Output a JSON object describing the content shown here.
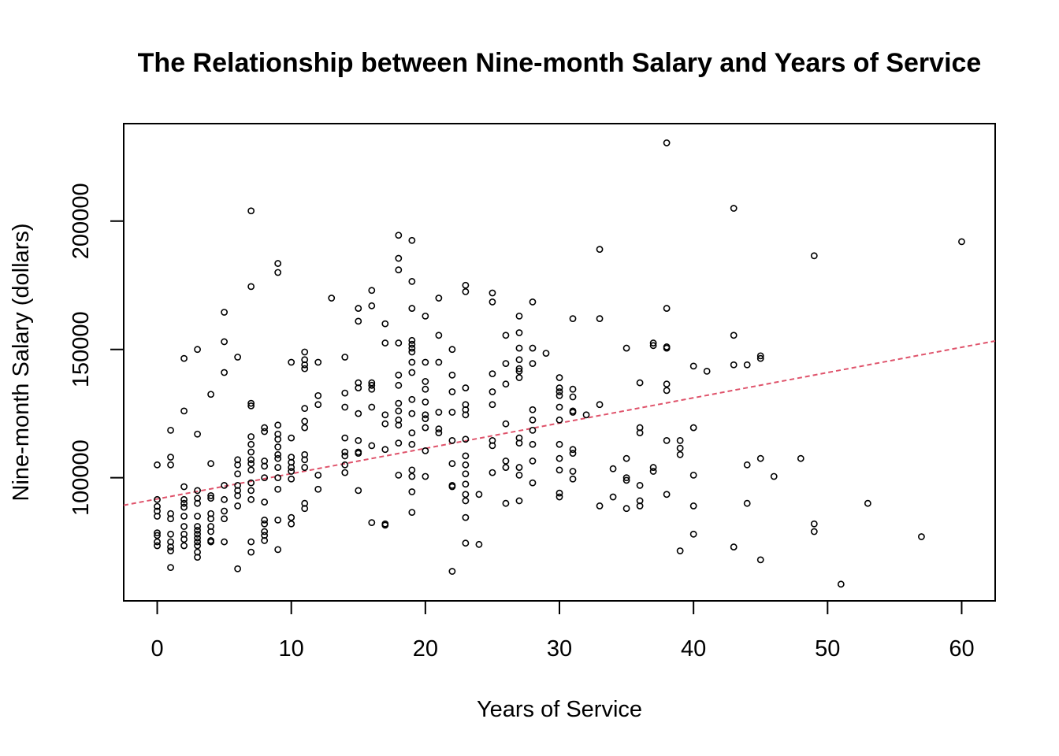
{
  "chart_data": {
    "type": "scatter",
    "title": "The Relationship between Nine-month Salary and Years of Service",
    "xlabel": "Years of Service",
    "ylabel": "Nine-month Salary (dollars)",
    "xlim": [
      -2.5,
      62.5
    ],
    "ylim": [
      52000,
      238000
    ],
    "x_ticks": [
      0,
      10,
      20,
      30,
      40,
      50,
      60
    ],
    "y_ticks": [
      100000,
      150000,
      200000
    ],
    "grid": false,
    "point_color": "#000000",
    "fit_line": {
      "style": "dashed",
      "color": "#DF536B",
      "intercept": 91719,
      "slope": 985.3
    },
    "points": [
      [
        0,
        105000
      ],
      [
        0,
        91500
      ],
      [
        0,
        88800
      ],
      [
        0,
        87000
      ],
      [
        0,
        85000
      ],
      [
        0,
        78500
      ],
      [
        0,
        77500
      ],
      [
        0,
        75000
      ],
      [
        0,
        73500
      ],
      [
        1,
        118500
      ],
      [
        1,
        108000
      ],
      [
        1,
        105000
      ],
      [
        1,
        86000
      ],
      [
        1,
        84000
      ],
      [
        1,
        78000
      ],
      [
        1,
        75000
      ],
      [
        1,
        73000
      ],
      [
        1,
        71500
      ],
      [
        1,
        65000
      ],
      [
        2,
        146500
      ],
      [
        2,
        126000
      ],
      [
        2,
        96500
      ],
      [
        2,
        91500
      ],
      [
        2,
        90000
      ],
      [
        2,
        88500
      ],
      [
        2,
        85000
      ],
      [
        2,
        81000
      ],
      [
        2,
        78000
      ],
      [
        2,
        76000
      ],
      [
        2,
        73500
      ],
      [
        3,
        150000
      ],
      [
        3,
        117000
      ],
      [
        3,
        95000
      ],
      [
        3,
        92000
      ],
      [
        3,
        90000
      ],
      [
        3,
        85000
      ],
      [
        3,
        81000
      ],
      [
        3,
        79500
      ],
      [
        3,
        78000
      ],
      [
        3,
        76500
      ],
      [
        3,
        75000
      ],
      [
        3,
        73500
      ],
      [
        3,
        71000
      ],
      [
        3,
        69000
      ],
      [
        4,
        132500
      ],
      [
        4,
        105500
      ],
      [
        4,
        93000
      ],
      [
        4,
        92000
      ],
      [
        4,
        86000
      ],
      [
        4,
        84000
      ],
      [
        4,
        81000
      ],
      [
        4,
        79000
      ],
      [
        4,
        75500
      ],
      [
        4,
        75000
      ],
      [
        5,
        164500
      ],
      [
        5,
        153000
      ],
      [
        5,
        141000
      ],
      [
        5,
        97000
      ],
      [
        5,
        91500
      ],
      [
        5,
        87000
      ],
      [
        5,
        84000
      ],
      [
        5,
        75000
      ],
      [
        6,
        147000
      ],
      [
        6,
        107000
      ],
      [
        6,
        105000
      ],
      [
        6,
        101500
      ],
      [
        6,
        97000
      ],
      [
        6,
        95000
      ],
      [
        6,
        93000
      ],
      [
        6,
        89000
      ],
      [
        6,
        64500
      ],
      [
        7,
        204000
      ],
      [
        7,
        174500
      ],
      [
        7,
        129000
      ],
      [
        7,
        128000
      ],
      [
        7,
        116000
      ],
      [
        7,
        113000
      ],
      [
        7,
        110000
      ],
      [
        7,
        107000
      ],
      [
        7,
        105500
      ],
      [
        7,
        103000
      ],
      [
        7,
        98000
      ],
      [
        7,
        95000
      ],
      [
        7,
        91500
      ],
      [
        7,
        75000
      ],
      [
        7,
        71000
      ],
      [
        8,
        119500
      ],
      [
        8,
        118000
      ],
      [
        8,
        106500
      ],
      [
        8,
        104500
      ],
      [
        8,
        100000
      ],
      [
        8,
        90500
      ],
      [
        8,
        83500
      ],
      [
        8,
        82000
      ],
      [
        8,
        79000
      ],
      [
        8,
        77500
      ],
      [
        8,
        75500
      ],
      [
        9,
        183500
      ],
      [
        9,
        180000
      ],
      [
        9,
        120500
      ],
      [
        9,
        117000
      ],
      [
        9,
        115000
      ],
      [
        9,
        112000
      ],
      [
        9,
        109000
      ],
      [
        9,
        107500
      ],
      [
        9,
        104000
      ],
      [
        9,
        100000
      ],
      [
        9,
        95500
      ],
      [
        9,
        83500
      ],
      [
        9,
        72000
      ],
      [
        10,
        145000
      ],
      [
        10,
        115500
      ],
      [
        10,
        108000
      ],
      [
        10,
        106000
      ],
      [
        10,
        104000
      ],
      [
        10,
        102500
      ],
      [
        10,
        99500
      ],
      [
        10,
        84500
      ],
      [
        10,
        82000
      ],
      [
        11,
        149000
      ],
      [
        11,
        146000
      ],
      [
        11,
        144000
      ],
      [
        11,
        142500
      ],
      [
        11,
        127000
      ],
      [
        11,
        122000
      ],
      [
        11,
        119500
      ],
      [
        11,
        109000
      ],
      [
        11,
        107000
      ],
      [
        11,
        104000
      ],
      [
        11,
        90000
      ],
      [
        11,
        88000
      ],
      [
        12,
        145000
      ],
      [
        12,
        132000
      ],
      [
        12,
        128500
      ],
      [
        12,
        101000
      ],
      [
        12,
        95500
      ],
      [
        13,
        170000
      ],
      [
        14,
        147000
      ],
      [
        14,
        133000
      ],
      [
        14,
        127500
      ],
      [
        14,
        115500
      ],
      [
        14,
        110000
      ],
      [
        14,
        108500
      ],
      [
        14,
        105000
      ],
      [
        14,
        102000
      ],
      [
        15,
        166000
      ],
      [
        15,
        161000
      ],
      [
        15,
        137000
      ],
      [
        15,
        135000
      ],
      [
        15,
        125000
      ],
      [
        15,
        114500
      ],
      [
        15,
        110000
      ],
      [
        15,
        109500
      ],
      [
        15,
        95000
      ],
      [
        16,
        173000
      ],
      [
        16,
        167000
      ],
      [
        16,
        137000
      ],
      [
        16,
        136000
      ],
      [
        16,
        134500
      ],
      [
        16,
        127500
      ],
      [
        16,
        112500
      ],
      [
        16,
        82500
      ],
      [
        17,
        160000
      ],
      [
        17,
        152500
      ],
      [
        17,
        124500
      ],
      [
        17,
        121000
      ],
      [
        17,
        111000
      ],
      [
        17,
        82000
      ],
      [
        17,
        81500
      ],
      [
        18,
        194500
      ],
      [
        18,
        185500
      ],
      [
        18,
        181000
      ],
      [
        18,
        152500
      ],
      [
        18,
        140000
      ],
      [
        18,
        136000
      ],
      [
        18,
        129000
      ],
      [
        18,
        126000
      ],
      [
        18,
        122500
      ],
      [
        18,
        120500
      ],
      [
        18,
        113500
      ],
      [
        18,
        101000
      ],
      [
        19,
        192500
      ],
      [
        19,
        176500
      ],
      [
        19,
        166000
      ],
      [
        19,
        153500
      ],
      [
        19,
        152000
      ],
      [
        19,
        150500
      ],
      [
        19,
        149000
      ],
      [
        19,
        145000
      ],
      [
        19,
        141000
      ],
      [
        19,
        130500
      ],
      [
        19,
        125000
      ],
      [
        19,
        117500
      ],
      [
        19,
        113000
      ],
      [
        19,
        103000
      ],
      [
        19,
        100500
      ],
      [
        19,
        94500
      ],
      [
        19,
        86500
      ],
      [
        20,
        163000
      ],
      [
        20,
        145000
      ],
      [
        20,
        137500
      ],
      [
        20,
        134500
      ],
      [
        20,
        129500
      ],
      [
        20,
        124500
      ],
      [
        20,
        123000
      ],
      [
        20,
        119500
      ],
      [
        20,
        110500
      ],
      [
        20,
        100500
      ],
      [
        21,
        170000
      ],
      [
        21,
        155500
      ],
      [
        21,
        145000
      ],
      [
        21,
        125500
      ],
      [
        21,
        119000
      ],
      [
        21,
        117500
      ],
      [
        22,
        150000
      ],
      [
        22,
        140000
      ],
      [
        22,
        133500
      ],
      [
        22,
        125500
      ],
      [
        22,
        114500
      ],
      [
        22,
        105500
      ],
      [
        22,
        97000
      ],
      [
        22,
        96500
      ],
      [
        22,
        63500
      ],
      [
        23,
        175000
      ],
      [
        23,
        172500
      ],
      [
        23,
        135000
      ],
      [
        23,
        128500
      ],
      [
        23,
        126500
      ],
      [
        23,
        124500
      ],
      [
        23,
        115000
      ],
      [
        23,
        108500
      ],
      [
        23,
        105000
      ],
      [
        23,
        101500
      ],
      [
        23,
        97500
      ],
      [
        23,
        93500
      ],
      [
        23,
        91000
      ],
      [
        23,
        84500
      ],
      [
        23,
        74500
      ],
      [
        24,
        93500
      ],
      [
        24,
        74000
      ],
      [
        25,
        172000
      ],
      [
        25,
        168500
      ],
      [
        25,
        140500
      ],
      [
        25,
        133500
      ],
      [
        25,
        128500
      ],
      [
        25,
        114500
      ],
      [
        25,
        112500
      ],
      [
        25,
        102000
      ],
      [
        26,
        155500
      ],
      [
        26,
        144500
      ],
      [
        26,
        136500
      ],
      [
        26,
        121000
      ],
      [
        26,
        106500
      ],
      [
        26,
        104000
      ],
      [
        26,
        90000
      ],
      [
        27,
        163000
      ],
      [
        27,
        156500
      ],
      [
        27,
        150500
      ],
      [
        27,
        146000
      ],
      [
        27,
        142500
      ],
      [
        27,
        141500
      ],
      [
        27,
        139000
      ],
      [
        27,
        115500
      ],
      [
        27,
        113500
      ],
      [
        27,
        104000
      ],
      [
        27,
        101000
      ],
      [
        27,
        91000
      ],
      [
        28,
        168500
      ],
      [
        28,
        150500
      ],
      [
        28,
        144500
      ],
      [
        28,
        126500
      ],
      [
        28,
        122500
      ],
      [
        28,
        118500
      ],
      [
        28,
        113000
      ],
      [
        28,
        106500
      ],
      [
        28,
        98000
      ],
      [
        29,
        148500
      ],
      [
        30,
        139000
      ],
      [
        30,
        135000
      ],
      [
        30,
        133500
      ],
      [
        30,
        132000
      ],
      [
        30,
        127500
      ],
      [
        30,
        122500
      ],
      [
        30,
        113000
      ],
      [
        30,
        107500
      ],
      [
        30,
        103000
      ],
      [
        30,
        94000
      ],
      [
        30,
        92500
      ],
      [
        31,
        162000
      ],
      [
        31,
        134500
      ],
      [
        31,
        131500
      ],
      [
        31,
        126000
      ],
      [
        31,
        125500
      ],
      [
        31,
        111000
      ],
      [
        31,
        109500
      ],
      [
        31,
        102500
      ],
      [
        31,
        99500
      ],
      [
        32,
        124500
      ],
      [
        33,
        189000
      ],
      [
        33,
        162000
      ],
      [
        33,
        128500
      ],
      [
        33,
        89000
      ],
      [
        34,
        103500
      ],
      [
        34,
        92500
      ],
      [
        35,
        150500
      ],
      [
        35,
        107500
      ],
      [
        35,
        100000
      ],
      [
        35,
        99000
      ],
      [
        35,
        88000
      ],
      [
        36,
        137000
      ],
      [
        36,
        119500
      ],
      [
        36,
        117500
      ],
      [
        36,
        97000
      ],
      [
        36,
        91000
      ],
      [
        36,
        89000
      ],
      [
        37,
        152500
      ],
      [
        37,
        151500
      ],
      [
        37,
        104000
      ],
      [
        37,
        102500
      ],
      [
        38,
        230500
      ],
      [
        38,
        166000
      ],
      [
        38,
        151000
      ],
      [
        38,
        150500
      ],
      [
        38,
        136500
      ],
      [
        38,
        134000
      ],
      [
        38,
        114500
      ],
      [
        38,
        93500
      ],
      [
        39,
        114500
      ],
      [
        39,
        111500
      ],
      [
        39,
        109000
      ],
      [
        39,
        71500
      ],
      [
        40,
        143500
      ],
      [
        40,
        119500
      ],
      [
        40,
        101000
      ],
      [
        40,
        89000
      ],
      [
        40,
        78000
      ],
      [
        41,
        141500
      ],
      [
        43,
        205000
      ],
      [
        43,
        155500
      ],
      [
        43,
        144000
      ],
      [
        43,
        73000
      ],
      [
        44,
        144000
      ],
      [
        44,
        105000
      ],
      [
        44,
        90000
      ],
      [
        45,
        147500
      ],
      [
        45,
        146500
      ],
      [
        45,
        107500
      ],
      [
        45,
        68000
      ],
      [
        46,
        100500
      ],
      [
        48,
        107500
      ],
      [
        49,
        186500
      ],
      [
        49,
        82000
      ],
      [
        49,
        79000
      ],
      [
        51,
        58500
      ],
      [
        53,
        90000
      ],
      [
        57,
        77000
      ],
      [
        60,
        192000
      ]
    ]
  }
}
